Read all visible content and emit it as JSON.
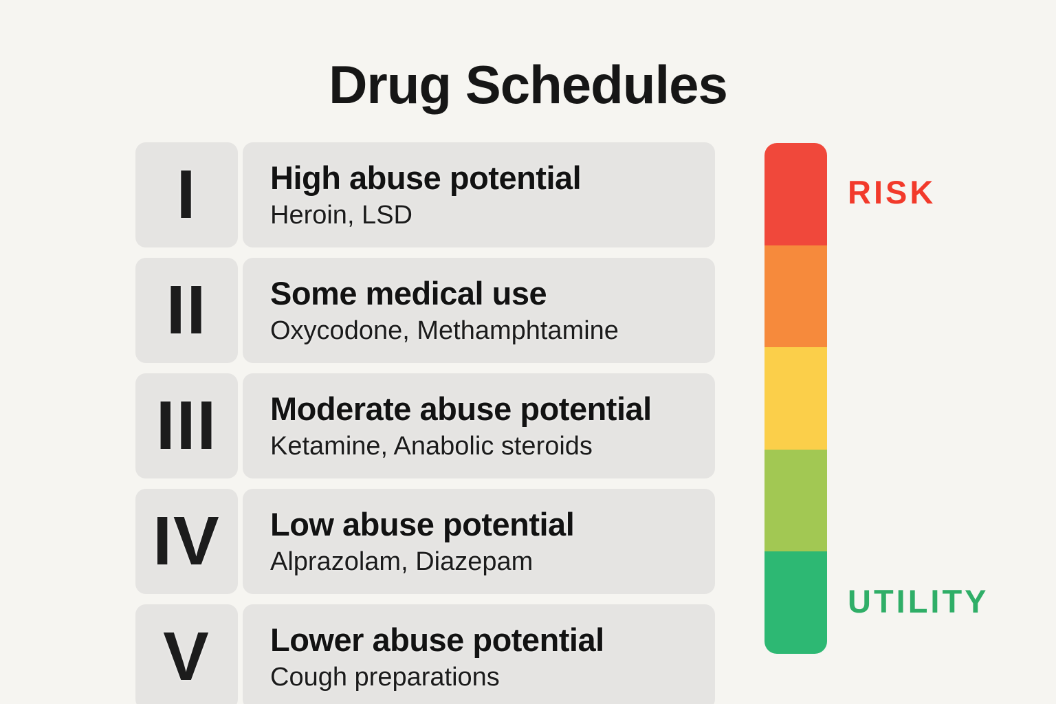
{
  "title": "Drug Schedules",
  "schedules": [
    {
      "numeral": "I",
      "label": "High abuse potential",
      "examples": "Heroin, LSD"
    },
    {
      "numeral": "II",
      "label": "Some medical use",
      "examples": "Oxycodone, Methamphtamine"
    },
    {
      "numeral": "III",
      "label": "Moderate abuse potential",
      "examples": "Ketamine, Anabolic steroids"
    },
    {
      "numeral": "IV",
      "label": "Low abuse potential",
      "examples": "Alprazolam, Diazepam"
    },
    {
      "numeral": "V",
      "label": "Lower abuse potential",
      "examples": "Cough preparations"
    }
  ],
  "scale": {
    "top_label": "RISK",
    "bottom_label": "UTILITY",
    "top_label_color": "#f23a2b",
    "bottom_label_color": "#2fae67",
    "segments": [
      {
        "name": "highest-risk",
        "color": "#f0483b"
      },
      {
        "name": "high-risk",
        "color": "#f68a3c"
      },
      {
        "name": "medium-risk",
        "color": "#fbcf4a"
      },
      {
        "name": "low-risk",
        "color": "#a2c853"
      },
      {
        "name": "highest-utility",
        "color": "#2db873"
      }
    ]
  },
  "colors": {
    "background": "#f6f5f1",
    "panel": "#e5e4e2"
  }
}
